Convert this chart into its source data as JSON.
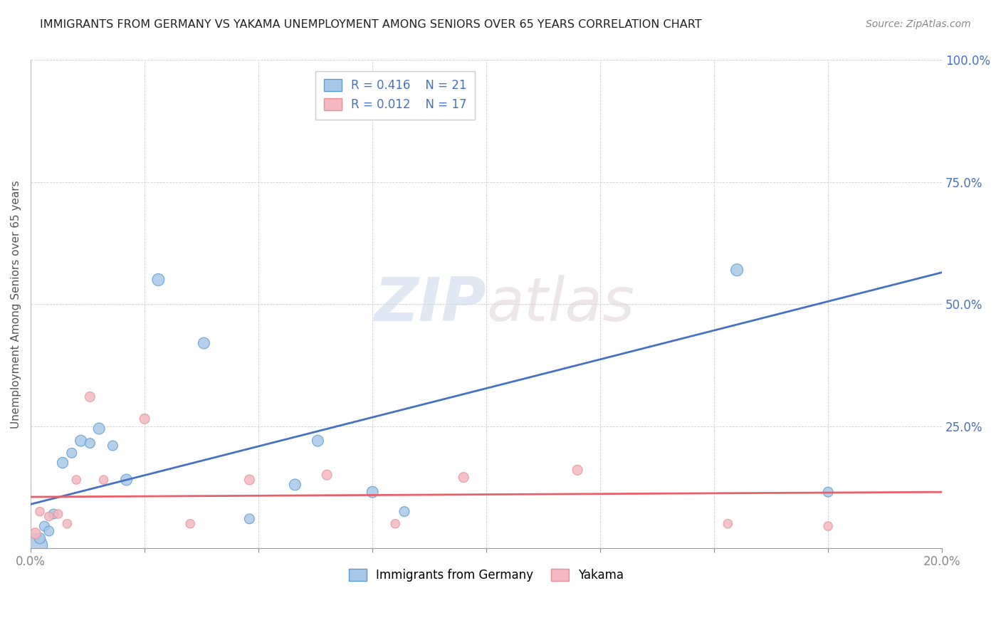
{
  "title": "IMMIGRANTS FROM GERMANY VS YAKAMA UNEMPLOYMENT AMONG SENIORS OVER 65 YEARS CORRELATION CHART",
  "source": "Source: ZipAtlas.com",
  "ylabel": "Unemployment Among Seniors over 65 years",
  "xlim": [
    0.0,
    0.2
  ],
  "ylim": [
    0.0,
    1.0
  ],
  "xticks": [
    0.0,
    0.025,
    0.05,
    0.075,
    0.1,
    0.125,
    0.15,
    0.175,
    0.2
  ],
  "xtick_labels": [
    "0.0%",
    "",
    "",
    "",
    "",
    "",
    "",
    "",
    "20.0%"
  ],
  "yticks_right": [
    0.0,
    0.25,
    0.5,
    0.75,
    1.0
  ],
  "ytick_labels_right": [
    "",
    "25.0%",
    "50.0%",
    "75.0%",
    "100.0%"
  ],
  "blue_color": "#a8c8e8",
  "pink_color": "#f4b8c0",
  "blue_edge_color": "#5b9bd5",
  "pink_edge_color": "#e8909a",
  "blue_line_color": "#4472c4",
  "pink_line_color": "#e8606a",
  "legend_R_blue": "R = 0.416",
  "legend_N_blue": "N = 21",
  "legend_R_pink": "R = 0.012",
  "legend_N_pink": "N = 17",
  "blue_scatter_x": [
    0.001,
    0.002,
    0.003,
    0.004,
    0.005,
    0.007,
    0.009,
    0.011,
    0.013,
    0.015,
    0.018,
    0.021,
    0.028,
    0.038,
    0.048,
    0.058,
    0.063,
    0.075,
    0.082,
    0.155,
    0.175
  ],
  "blue_scatter_y": [
    0.005,
    0.02,
    0.045,
    0.035,
    0.07,
    0.175,
    0.195,
    0.22,
    0.215,
    0.245,
    0.21,
    0.14,
    0.55,
    0.42,
    0.06,
    0.13,
    0.22,
    0.115,
    0.075,
    0.57,
    0.115
  ],
  "blue_scatter_sizes": [
    600,
    120,
    100,
    100,
    100,
    120,
    100,
    130,
    100,
    130,
    100,
    130,
    150,
    130,
    100,
    130,
    130,
    130,
    100,
    150,
    100
  ],
  "pink_scatter_x": [
    0.001,
    0.002,
    0.004,
    0.006,
    0.008,
    0.01,
    0.013,
    0.016,
    0.025,
    0.035,
    0.048,
    0.065,
    0.08,
    0.095,
    0.12,
    0.153,
    0.175
  ],
  "pink_scatter_y": [
    0.03,
    0.075,
    0.065,
    0.07,
    0.05,
    0.14,
    0.31,
    0.14,
    0.265,
    0.05,
    0.14,
    0.15,
    0.05,
    0.145,
    0.16,
    0.05,
    0.045
  ],
  "pink_scatter_sizes": [
    120,
    80,
    80,
    80,
    80,
    80,
    100,
    80,
    100,
    80,
    100,
    100,
    80,
    100,
    100,
    80,
    80
  ],
  "blue_trendline_x": [
    0.0,
    0.2
  ],
  "blue_trendline_y": [
    0.09,
    0.565
  ],
  "pink_trendline_x": [
    0.0,
    0.2
  ],
  "pink_trendline_y": [
    0.105,
    0.115
  ],
  "watermark_zip": "ZIP",
  "watermark_atlas": "atlas",
  "background_color": "#ffffff",
  "grid_color": "#d0d0d0",
  "title_color": "#222222",
  "axis_label_color": "#555555",
  "tick_color": "#4472c4"
}
